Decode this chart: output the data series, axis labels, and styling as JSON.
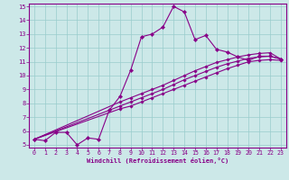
{
  "xlabel": "Windchill (Refroidissement éolien,°C)",
  "bg_color": "#cce8e8",
  "line_color": "#880088",
  "grid_color": "#99cccc",
  "xlim": [
    -0.5,
    23.5
  ],
  "ylim": [
    4.8,
    15.2
  ],
  "xticks": [
    0,
    1,
    2,
    3,
    4,
    5,
    6,
    7,
    8,
    9,
    10,
    11,
    12,
    13,
    14,
    15,
    16,
    17,
    18,
    19,
    20,
    21,
    22,
    23
  ],
  "yticks": [
    5,
    6,
    7,
    8,
    9,
    10,
    11,
    12,
    13,
    14,
    15
  ],
  "series1_x": [
    0,
    1,
    2,
    3,
    4,
    5,
    6,
    7,
    8,
    9,
    10,
    11,
    12,
    13,
    14,
    15,
    16,
    17,
    18,
    19,
    20,
    21,
    22,
    23
  ],
  "series1_y": [
    5.4,
    5.3,
    5.9,
    5.9,
    5.0,
    5.5,
    5.4,
    7.5,
    8.5,
    10.4,
    12.8,
    13.0,
    13.5,
    15.0,
    14.6,
    12.6,
    12.9,
    11.9,
    11.7,
    11.35,
    11.1,
    11.4,
    11.4,
    11.2
  ],
  "series2_x": [
    0,
    8,
    9,
    10,
    11,
    12,
    13,
    14,
    15,
    16,
    17,
    18,
    19,
    20,
    21,
    22,
    23
  ],
  "series2_y": [
    5.4,
    7.6,
    7.8,
    8.1,
    8.4,
    8.7,
    9.0,
    9.3,
    9.6,
    9.9,
    10.2,
    10.5,
    10.75,
    11.0,
    11.1,
    11.15,
    11.1
  ],
  "series3_x": [
    0,
    8,
    9,
    10,
    11,
    12,
    13,
    14,
    15,
    16,
    17,
    18,
    19,
    20,
    21,
    22,
    23
  ],
  "series3_y": [
    5.4,
    7.8,
    8.1,
    8.4,
    8.7,
    9.0,
    9.35,
    9.7,
    10.0,
    10.3,
    10.6,
    10.85,
    11.05,
    11.25,
    11.35,
    11.4,
    11.2
  ],
  "series4_x": [
    0,
    8,
    9,
    10,
    11,
    12,
    13,
    14,
    15,
    16,
    17,
    18,
    19,
    20,
    21,
    22,
    23
  ],
  "series4_y": [
    5.4,
    8.1,
    8.4,
    8.7,
    9.0,
    9.3,
    9.65,
    10.0,
    10.35,
    10.65,
    10.95,
    11.15,
    11.35,
    11.5,
    11.6,
    11.65,
    11.2
  ]
}
